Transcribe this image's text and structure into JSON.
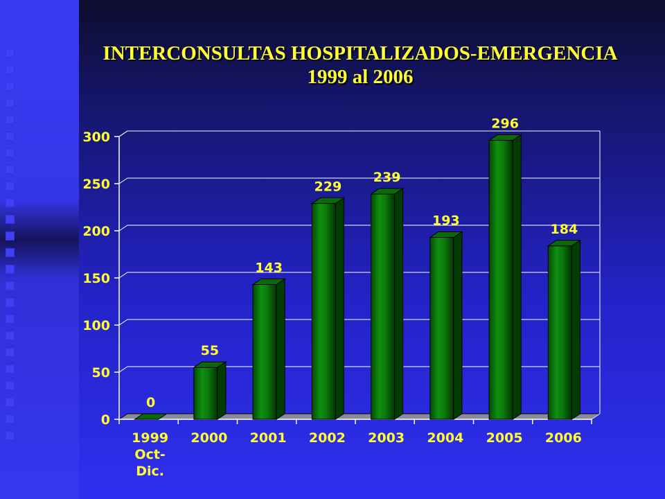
{
  "title_line1": "INTERCONSULTAS HOSPITALIZADOS-EMERGENCIA",
  "title_line2": "1999 al 2006",
  "colors": {
    "bar_front": "#0b7a0b",
    "bar_dark": "#033c03",
    "label": "#ffff33",
    "grid": "#ffffff"
  },
  "chart_data": {
    "type": "bar",
    "title": "INTERCONSULTAS HOSPITALIZADOS-EMERGENCIA 1999 al 2006",
    "categories": [
      [
        "1999",
        "Oct-",
        "Dic."
      ],
      [
        "2000"
      ],
      [
        "2001"
      ],
      [
        "2002"
      ],
      [
        "2003"
      ],
      [
        "2004"
      ],
      [
        "2005"
      ],
      [
        "2006"
      ]
    ],
    "values": [
      0,
      55,
      143,
      229,
      239,
      193,
      296,
      184
    ],
    "data_labels": [
      "0",
      "55",
      "143",
      "229",
      "239",
      "193",
      "296",
      "184"
    ],
    "ylim": [
      0,
      300
    ],
    "yticks": [
      0,
      50,
      100,
      150,
      200,
      250,
      300
    ],
    "xlabel": "",
    "ylabel": "",
    "grid": true,
    "legend": "none"
  }
}
